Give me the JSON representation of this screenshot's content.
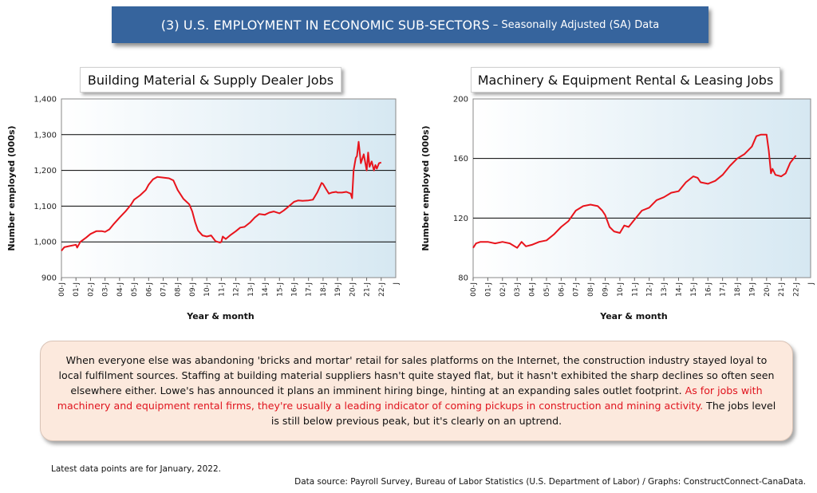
{
  "banner": {
    "title": "(3) U.S. EMPLOYMENT IN ECONOMIC SUB-SECTORS",
    "subtitle": "– Seasonally Adjusted (SA) Data"
  },
  "chart_data": [
    {
      "type": "line",
      "title": "Building Material & Supply Dealer Jobs",
      "xlabel": "Year & month",
      "ylabel": "Number employed (000s)",
      "ylim": [
        900,
        1400
      ],
      "yticks": [
        900,
        1000,
        1100,
        1200,
        1300,
        1400
      ],
      "ytick_labels": [
        "900",
        "1,000",
        "1,100",
        "1,200",
        "1,300",
        "1,400"
      ],
      "xticks": [
        2000,
        2001,
        2002,
        2003,
        2004,
        2005,
        2006,
        2007,
        2008,
        2009,
        2010,
        2011,
        2012,
        2013,
        2014,
        2015,
        2016,
        2017,
        2018,
        2019,
        2020,
        2021,
        2022
      ],
      "xtick_labels": [
        "00-J",
        "01-J",
        "02-J",
        "03-J",
        "04-J",
        "05-J",
        "06-J",
        "07-J",
        "08-J",
        "09-J",
        "10-J",
        "11-J",
        "12-J",
        "13-J",
        "14-J",
        "15-J",
        "16-J",
        "17-J",
        "18-J",
        "19-J",
        "20-J",
        "21-J",
        "22-J"
      ],
      "xlim": [
        2000,
        2023
      ],
      "grid": true,
      "color": "#e8141c",
      "series": [
        {
          "x": [
            2000.0,
            2000.2,
            2000.5,
            2001.0,
            2001.08,
            2001.3,
            2001.7,
            2002.0,
            2002.4,
            2002.8,
            2003.0,
            2003.3,
            2003.6,
            2004.0,
            2004.4,
            2004.8,
            2005.0,
            2005.4,
            2005.8,
            2006.0,
            2006.3,
            2006.6,
            2007.0,
            2007.4,
            2007.7,
            2008.0,
            2008.4,
            2008.8,
            2009.0,
            2009.2,
            2009.4,
            2009.7,
            2010.0,
            2010.3,
            2010.6,
            2010.9,
            2011.0,
            2011.1,
            2011.3,
            2011.6,
            2012.0,
            2012.3,
            2012.6,
            2013.0,
            2013.3,
            2013.6,
            2014.0,
            2014.3,
            2014.6,
            2015.0,
            2015.3,
            2015.6,
            2016.0,
            2016.3,
            2016.6,
            2017.0,
            2017.3,
            2017.6,
            2017.9,
            2018.0,
            2018.2,
            2018.4,
            2018.6,
            2018.9,
            2019.0,
            2019.3,
            2019.6,
            2019.9,
            2020.0,
            2020.1,
            2020.25,
            2020.33,
            2020.45,
            2020.6,
            2020.8,
            2021.0,
            2021.1,
            2021.2,
            2021.35,
            2021.5,
            2021.6,
            2021.7,
            2021.85,
            2022.0
          ],
          "y": [
            975,
            985,
            988,
            992,
            984,
            1000,
            1012,
            1022,
            1030,
            1030,
            1028,
            1035,
            1050,
            1068,
            1085,
            1105,
            1118,
            1130,
            1145,
            1160,
            1175,
            1182,
            1180,
            1178,
            1172,
            1145,
            1120,
            1105,
            1085,
            1055,
            1032,
            1018,
            1015,
            1018,
            1002,
            998,
            1000,
            1015,
            1008,
            1018,
            1030,
            1040,
            1042,
            1055,
            1068,
            1078,
            1076,
            1082,
            1085,
            1080,
            1088,
            1098,
            1112,
            1116,
            1115,
            1116,
            1118,
            1138,
            1165,
            1162,
            1148,
            1135,
            1138,
            1140,
            1138,
            1138,
            1140,
            1135,
            1122,
            1200,
            1235,
            1240,
            1280,
            1220,
            1245,
            1200,
            1250,
            1210,
            1225,
            1200,
            1215,
            1205,
            1220,
            1222
          ]
        }
      ]
    },
    {
      "type": "line",
      "title": "Machinery & Equipment Rental & Leasing Jobs",
      "xlabel": "Year & month",
      "ylabel": "Number employed (000s)",
      "ylim": [
        80,
        200
      ],
      "yticks": [
        80,
        120,
        160,
        200
      ],
      "ytick_labels": [
        "80",
        "120",
        "160",
        "200"
      ],
      "xticks": [
        2000,
        2001,
        2002,
        2003,
        2004,
        2005,
        2006,
        2007,
        2008,
        2009,
        2010,
        2011,
        2012,
        2013,
        2014,
        2015,
        2016,
        2017,
        2018,
        2019,
        2020,
        2021,
        2022
      ],
      "xtick_labels": [
        "00-J",
        "01-J",
        "02-J",
        "03-J",
        "04-J",
        "05-J",
        "06-J",
        "07-J",
        "08-J",
        "09-J",
        "10-J",
        "11-J",
        "12-J",
        "13-J",
        "14-J",
        "15-J",
        "16-J",
        "17-J",
        "18-J",
        "19-J",
        "20-J",
        "21-J",
        "22-J"
      ],
      "xlim": [
        2000,
        2023
      ],
      "grid": true,
      "color": "#e8141c",
      "series": [
        {
          "x": [
            2000.0,
            2000.2,
            2000.5,
            2001.0,
            2001.5,
            2002.0,
            2002.5,
            2003.0,
            2003.3,
            2003.6,
            2004.0,
            2004.5,
            2005.0,
            2005.5,
            2006.0,
            2006.5,
            2007.0,
            2007.5,
            2008.0,
            2008.5,
            2008.8,
            2009.0,
            2009.3,
            2009.6,
            2010.0,
            2010.3,
            2010.6,
            2011.0,
            2011.5,
            2012.0,
            2012.5,
            2013.0,
            2013.5,
            2014.0,
            2014.5,
            2015.0,
            2015.3,
            2015.5,
            2016.0,
            2016.5,
            2017.0,
            2017.5,
            2018.0,
            2018.5,
            2019.0,
            2019.3,
            2019.6,
            2020.0,
            2020.15,
            2020.3,
            2020.4,
            2020.6,
            2021.0,
            2021.3,
            2021.6,
            2022.0
          ],
          "y": [
            100,
            103,
            104,
            104,
            103,
            104,
            103,
            100,
            104,
            101,
            102,
            104,
            105,
            109,
            114,
            118,
            125,
            128,
            129,
            128,
            125,
            122,
            114,
            111,
            110,
            115,
            114,
            119,
            125,
            127,
            132,
            134,
            137,
            138,
            144,
            148,
            147,
            144,
            143,
            145,
            149,
            155,
            160,
            163,
            168,
            175,
            176,
            176,
            165,
            150,
            153,
            149,
            148,
            150,
            157,
            162
          ]
        }
      ]
    }
  ],
  "note": {
    "text_black": "When everyone else was abandoning 'bricks and mortar' retail for sales platforms on the Internet, the construction industry stayed loyal to local fulfilment sources. Staffing at building material suppliers hasn't quite stayed flat, but it hasn't exhibited the sharp declines so often seen elsewhere either. Lowe's has announced it plans an imminent hiring binge, hinting at an expanding sales outlet footprint. ",
    "text_red": "As for jobs with machinery and equipment rental firms, they're usually a leading indicator of coming pickups in construction and mining activity.",
    "text_tail": " The jobs level is still below previous peak, but it's clearly on an uptrend."
  },
  "footer": {
    "latest": "Latest data points are for January, 2022.",
    "source": "Data source: Payroll Survey, Bureau of Labor Statistics (U.S. Department of Labor) / Graphs: ConstructConnect-CanaData."
  }
}
